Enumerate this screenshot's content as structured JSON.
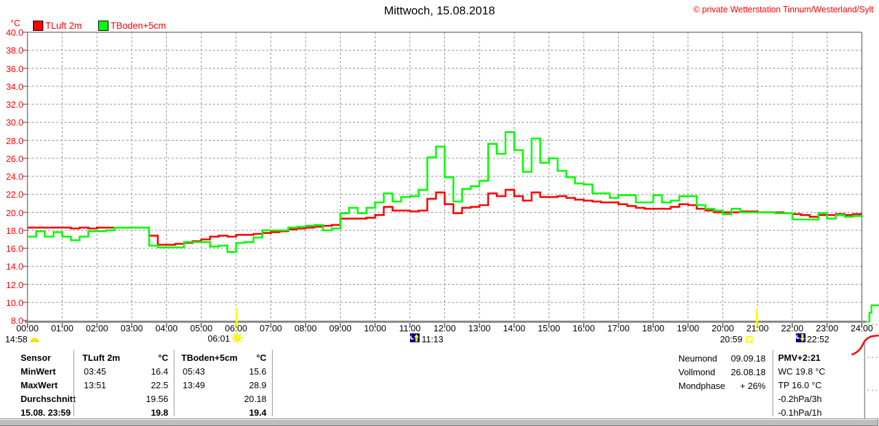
{
  "header": {
    "title": "Mittwoch, 15.08.2018",
    "copyright": "© private Wetterstation Tinnum/Westerland/Sylt"
  },
  "chart_data": {
    "type": "line",
    "title": "Mittwoch, 15.08.2018",
    "ylabel": "°C",
    "ylim": [
      8.0,
      40.0
    ],
    "ytick_step": 2.0,
    "x_hours": [
      0,
      24
    ],
    "x_step_minutes": 15,
    "grid": true,
    "legend_position": "top-left",
    "xtick_labels": [
      "00:00",
      "01:00",
      "02:00",
      "03:00",
      "04:00",
      "05:00",
      "06:00",
      "07:00",
      "08:00",
      "09:00",
      "10:00",
      "11:00",
      "12:00",
      "13:00",
      "14:00",
      "15:00",
      "16:00",
      "17:00",
      "18:00",
      "19:00",
      "20:00",
      "21:00",
      "22:00",
      "23:00",
      "24:00"
    ],
    "sun_event_hours": [
      6.02,
      20.98
    ],
    "series": [
      {
        "name": "TLuft 2m",
        "color": "#ff0000",
        "values": [
          18.3,
          18.3,
          18.3,
          18.3,
          18.3,
          18.2,
          18.3,
          18.2,
          18.3,
          18.3,
          18.3,
          18.3,
          18.3,
          18.3,
          17.4,
          16.4,
          16.4,
          16.5,
          16.6,
          16.8,
          17.0,
          17.3,
          17.4,
          17.3,
          17.5,
          17.5,
          17.6,
          17.7,
          17.8,
          17.9,
          18.1,
          18.2,
          18.3,
          18.4,
          18.5,
          18.6,
          19.3,
          19.3,
          19.3,
          19.4,
          19.7,
          20.6,
          20.2,
          20.2,
          20.1,
          20.2,
          21.5,
          22.2,
          20.9,
          19.9,
          20.5,
          20.6,
          20.8,
          22.1,
          21.8,
          22.5,
          21.8,
          21.3,
          22.2,
          21.7,
          21.7,
          21.8,
          21.6,
          21.4,
          21.3,
          21.2,
          21.1,
          21.1,
          20.9,
          20.7,
          20.5,
          20.4,
          20.4,
          20.4,
          20.6,
          20.9,
          20.8,
          20.4,
          20.2,
          20.0,
          20.0,
          20.0,
          20.1,
          20.1,
          20.0,
          20.0,
          20.0,
          19.9,
          19.8,
          19.7,
          19.5,
          19.7,
          19.7,
          19.8,
          19.7,
          19.8,
          19.8
        ]
      },
      {
        "name": "TBoden+5cm",
        "color": "#00ff00",
        "values": [
          17.3,
          17.9,
          17.3,
          17.8,
          17.3,
          16.9,
          17.3,
          17.9,
          17.9,
          18.0,
          18.3,
          18.3,
          18.3,
          18.3,
          16.3,
          16.1,
          16.1,
          16.1,
          16.7,
          16.7,
          16.7,
          16.2,
          16.3,
          15.6,
          16.6,
          16.7,
          17.2,
          18.0,
          18.0,
          18.0,
          18.3,
          18.4,
          18.5,
          18.6,
          18.0,
          18.2,
          19.9,
          20.5,
          19.9,
          20.5,
          21.1,
          22.1,
          21.2,
          21.7,
          21.8,
          22.5,
          26.1,
          27.3,
          23.9,
          21.2,
          22.6,
          22.9,
          23.5,
          27.6,
          26.5,
          28.9,
          26.9,
          24.5,
          28.2,
          25.5,
          26.0,
          24.6,
          23.9,
          23.2,
          23.1,
          22.1,
          22.1,
          21.6,
          21.9,
          21.9,
          21.1,
          21.1,
          21.9,
          21.1,
          21.3,
          21.8,
          21.8,
          20.8,
          20.4,
          20.2,
          19.8,
          20.4,
          20.0,
          20.0,
          20.0,
          20.0,
          19.9,
          19.9,
          19.2,
          19.2,
          19.2,
          19.9,
          19.3,
          19.7,
          19.5,
          19.6,
          19.4
        ]
      }
    ]
  },
  "markers": [
    {
      "label": "14:58",
      "icon": "moon"
    },
    {
      "label": "06:01",
      "icon": "sunrise"
    },
    {
      "label": "11:13",
      "icon": "moonrise"
    },
    {
      "label": "20:59",
      "icon": "sunset"
    },
    {
      "label": "22:52",
      "icon": "moonset"
    }
  ],
  "table": {
    "row_labels": [
      "Sensor",
      "MinWert",
      "MaxWert",
      "Durchschnitt",
      "15.08. 23:59"
    ],
    "col1": {
      "header": "TLuft 2m",
      "unit": "°C",
      "min_time": "03:45",
      "min": "16.4",
      "max_time": "13:51",
      "max": "22.5",
      "avg": "19.56",
      "last": "19.8"
    },
    "col2": {
      "header": "TBoden+5cm",
      "unit": "°C",
      "min_time": "05:43",
      "min": "15.6",
      "max_time": "13:49",
      "max": "28.9",
      "avg": "20.18",
      "last": "19.4"
    }
  },
  "astro": {
    "rows": [
      {
        "label": "Neumond",
        "value": "09.09.18"
      },
      {
        "label": "Vollmond",
        "value": "26.08.18"
      },
      {
        "label": "Mondphase",
        "value": "+ 26%"
      }
    ]
  },
  "right_panel": {
    "lines": [
      "PMV+2:21",
      "WC 19.8 °C",
      "TP 16.0 °C",
      "-0.2hPa/3h",
      "-0.1hPa/1h"
    ]
  }
}
